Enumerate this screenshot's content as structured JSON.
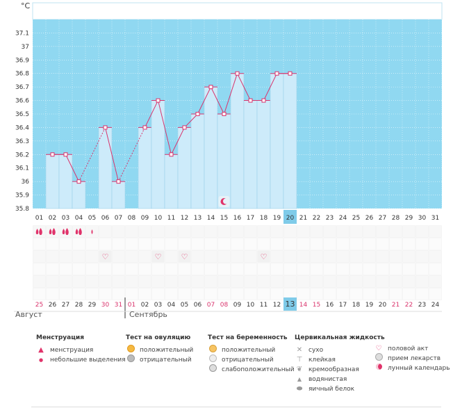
{
  "chart_data": {
    "type": "bar+line",
    "unit_label": "°C",
    "ylim": [
      35.8,
      37.2
    ],
    "y_ticks": [
      "35.8",
      "35.9",
      "36",
      "36.1",
      "36.2",
      "36.3",
      "36.4",
      "36.5",
      "36.6",
      "36.7",
      "36.8",
      "36.9",
      "37",
      "37.1"
    ],
    "x_labels": [
      "01",
      "02",
      "03",
      "04",
      "05",
      "06",
      "07",
      "08",
      "09",
      "10",
      "11",
      "12",
      "13",
      "14",
      "15",
      "16",
      "17",
      "18",
      "19",
      "20",
      "21",
      "22",
      "23",
      "24",
      "25",
      "26",
      "27",
      "28",
      "29",
      "30",
      "31"
    ],
    "temperatures": [
      null,
      36.2,
      36.2,
      36.0,
      null,
      36.4,
      36.0,
      null,
      36.4,
      36.6,
      36.2,
      36.4,
      36.5,
      36.7,
      36.5,
      36.8,
      36.6,
      36.6,
      36.8,
      36.8,
      null,
      null,
      null,
      null,
      null,
      null,
      null,
      null,
      null,
      null,
      null
    ],
    "dashed_segments": [
      [
        4,
        6
      ],
      [
        7,
        9
      ]
    ],
    "highlight_day_index": 19,
    "cycle_days": [
      "25",
      "26",
      "27",
      "28",
      "29",
      "30",
      "31",
      "01",
      "02",
      "03",
      "04",
      "05",
      "06",
      "07",
      "08",
      "09",
      "10",
      "11",
      "12",
      "13",
      "14",
      "15",
      "16",
      "17",
      "18",
      "19",
      "20",
      "21",
      "22",
      "23",
      "24"
    ],
    "cycle_red_indices": [
      0,
      5,
      6,
      7,
      13,
      14,
      20,
      21,
      27,
      28
    ],
    "menstruation": {
      "1": "heavy",
      "2": "heavy",
      "3": "heavy",
      "4": "heavy",
      "5": "light"
    },
    "intercourse_days": [
      6,
      10,
      12,
      18
    ],
    "moon_day": 15
  },
  "months": {
    "first": "Август",
    "second": "Сентябрь"
  },
  "legend": {
    "menstruation": {
      "title": "Менструация",
      "items": [
        "менструация",
        "небольшие выделения"
      ]
    },
    "ovulation": {
      "title": "Тест на овуляцию",
      "items": [
        "положительный",
        "отрицательный"
      ]
    },
    "pregnancy": {
      "title": "Тест на беременность",
      "items": [
        "положительный",
        "отрицательный",
        "слабоположительный"
      ]
    },
    "cervical": {
      "title": "Цервикальная жидкость",
      "items": [
        "сухо",
        "клейкая",
        "кремообразная",
        "водянистая",
        "яичный белок"
      ]
    },
    "other": {
      "items": [
        "половой акт",
        "прием лекарств",
        "лунный календарь"
      ]
    }
  },
  "colors": {
    "sky": "#90d8f1",
    "bar": "#cdebfa",
    "bar_border": "#9ad0ea",
    "line": "#d9336c",
    "highlight": "#7fcbe9",
    "red_text": "#d9336c"
  }
}
